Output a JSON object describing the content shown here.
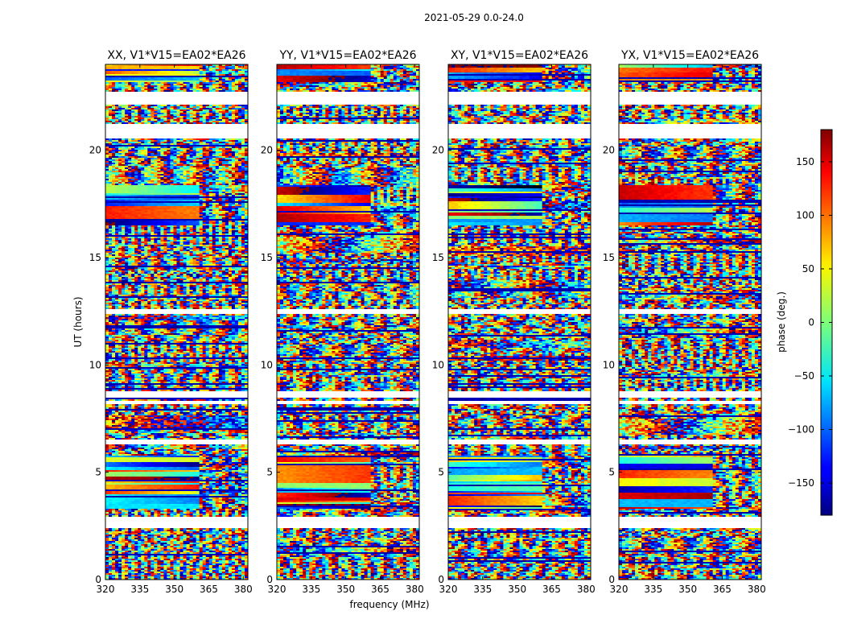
{
  "figure": {
    "suptitle": "2021-05-29 0.0-24.0"
  },
  "chart_data": {
    "type": "heatmap",
    "xlabel": "frequency (MHz)",
    "ylabel": "UT (hours)",
    "xlim": [
      320,
      382
    ],
    "ylim": [
      0,
      24
    ],
    "x_ticks": [
      320,
      335,
      350,
      365,
      380
    ],
    "y_ticks": [
      0,
      5,
      10,
      15,
      20
    ],
    "colormap": "jet",
    "panels": [
      {
        "title": "XX, V1*V15=EA02*EA26"
      },
      {
        "title": "YY, V1*V15=EA02*EA26"
      },
      {
        "title": "XY, V1*V15=EA02*EA26"
      },
      {
        "title": "YX, V1*V15=EA02*EA26"
      }
    ],
    "gaps_hours": [
      [
        2.4,
        2.9
      ],
      [
        6.3,
        6.55
      ],
      [
        8.15,
        8.3
      ],
      [
        8.5,
        8.75
      ],
      [
        12.4,
        12.6
      ],
      [
        20.55,
        21.25
      ],
      [
        22.1,
        22.75
      ]
    ],
    "colorbar": {
      "label": "phase (deg.)",
      "range": [
        -180,
        180
      ],
      "ticks": [
        -150,
        -100,
        -50,
        0,
        50,
        100,
        150
      ],
      "tick_labels": [
        "−150",
        "−100",
        "−50",
        "0",
        "50",
        "100",
        "150"
      ]
    }
  }
}
